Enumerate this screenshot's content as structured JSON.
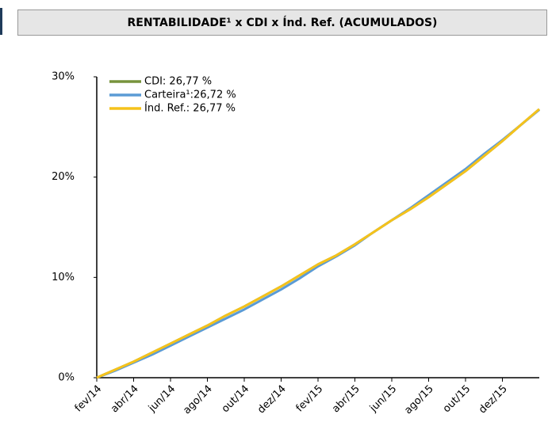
{
  "chart_data": {
    "type": "line",
    "title": "RENTABILIDADE¹ x CDI x Índ. Ref. (ACUMULADOS)",
    "categories": [
      "fev/14",
      null,
      "abr/14",
      null,
      "jun/14",
      null,
      "ago/14",
      null,
      "out/14",
      null,
      "dez/14",
      null,
      "fev/15",
      null,
      "abr/15",
      null,
      "jun/15",
      null,
      "ago/15",
      null,
      "out/15",
      null,
      "dez/15",
      null,
      null
    ],
    "series": [
      {
        "name": "CDI: 26,77 %",
        "color": "#77933c",
        "values": [
          0,
          0.8,
          1.6,
          2.5,
          3.4,
          4.3,
          5.2,
          6.2,
          7.1,
          8.1,
          9.1,
          10.2,
          11.3,
          12.2,
          13.3,
          14.5,
          15.7,
          16.8,
          18.0,
          19.3,
          20.6,
          22.1,
          23.6,
          25.2,
          26.77
        ]
      },
      {
        "name": "Carteira¹:26,72 %",
        "color": "#5b9bd5",
        "values": [
          0,
          0.7,
          1.5,
          2.3,
          3.2,
          4.1,
          5.0,
          5.9,
          6.8,
          7.8,
          8.8,
          9.9,
          11.1,
          12.1,
          13.2,
          14.5,
          15.7,
          16.9,
          18.2,
          19.5,
          20.8,
          22.3,
          23.7,
          25.2,
          26.72
        ]
      },
      {
        "name": "Índ. Ref.: 26,77 %",
        "color": "#f5c21b",
        "values": [
          0,
          0.8,
          1.6,
          2.5,
          3.4,
          4.3,
          5.2,
          6.2,
          7.1,
          8.1,
          9.1,
          10.2,
          11.3,
          12.2,
          13.3,
          14.5,
          15.7,
          16.8,
          18.0,
          19.3,
          20.6,
          22.1,
          23.6,
          25.2,
          26.77
        ]
      }
    ],
    "ylim": [
      0,
      30
    ],
    "yticks": [
      {
        "value": 0,
        "label": "0%"
      },
      {
        "value": 10,
        "label": "10%"
      },
      {
        "value": 20,
        "label": "20%"
      },
      {
        "value": 30,
        "label": "30%"
      }
    ],
    "legend": "top-left"
  }
}
